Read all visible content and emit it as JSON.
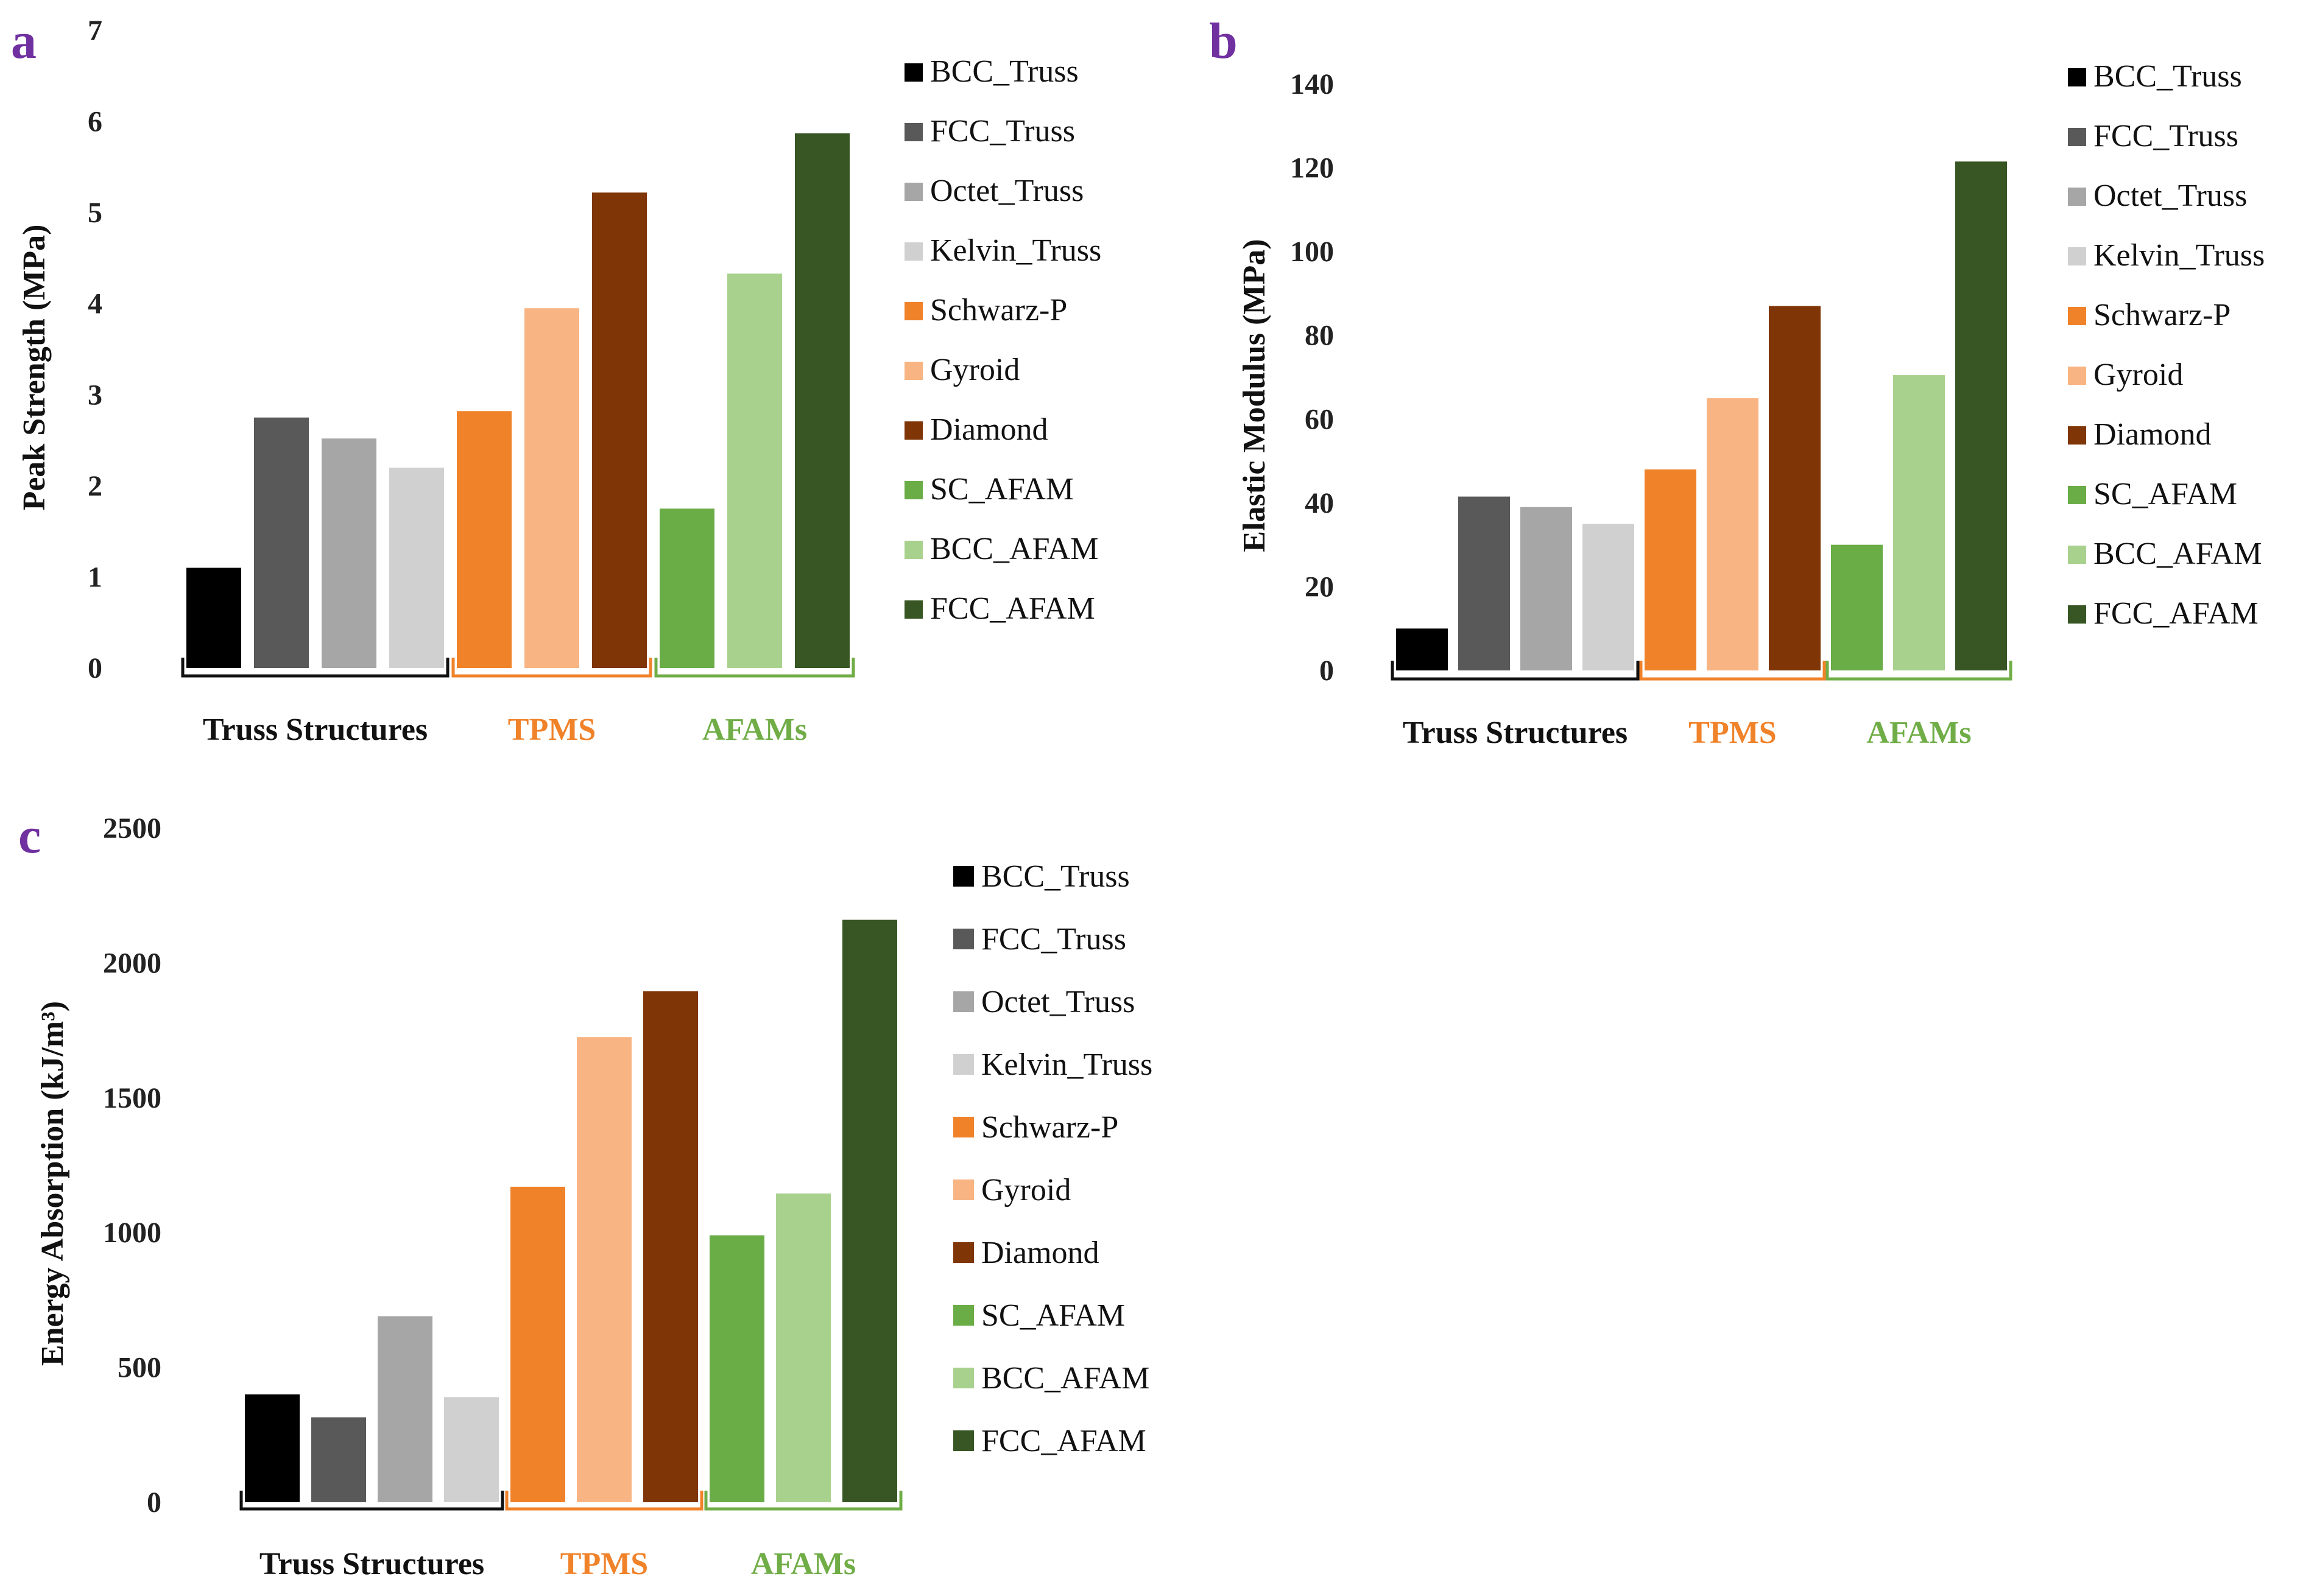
{
  "legend_items": [
    {
      "name": "BCC_Truss",
      "color": "#000000"
    },
    {
      "name": "FCC_Truss",
      "color": "#595959"
    },
    {
      "name": "Octet_Truss",
      "color": "#a6a6a6"
    },
    {
      "name": "Kelvin_Truss",
      "color": "#d0d0d0"
    },
    {
      "name": "Schwarz-P",
      "color": "#f0822a"
    },
    {
      "name": "Gyroid",
      "color": "#f8b482"
    },
    {
      "name": "Diamond",
      "color": "#7f3506"
    },
    {
      "name": "SC_AFAM",
      "color": "#6aac46"
    },
    {
      "name": "BCC_AFAM",
      "color": "#a9d18e"
    },
    {
      "name": "FCC_AFAM",
      "color": "#375623"
    }
  ],
  "groups": [
    {
      "label": "Truss Structures",
      "color": "#111111",
      "range": [
        0,
        3
      ]
    },
    {
      "label": "TPMS",
      "color": "#f0822a",
      "range": [
        4,
        6
      ]
    },
    {
      "label": "AFAMs",
      "color": "#70ad47",
      "range": [
        7,
        9
      ]
    }
  ],
  "chart_data": [
    {
      "panel": "a",
      "type": "bar",
      "categories": [
        "BCC_Truss",
        "FCC_Truss",
        "Octet_Truss",
        "Kelvin_Truss",
        "Schwarz-P",
        "Gyroid",
        "Diamond",
        "SC_AFAM",
        "BCC_AFAM",
        "FCC_AFAM"
      ],
      "values": [
        1.1,
        2.75,
        2.52,
        2.2,
        2.82,
        3.95,
        5.22,
        1.75,
        4.33,
        5.87
      ],
      "ylabel": "Peak Strength (MPa)",
      "ylim": [
        0,
        7
      ],
      "yticks": [
        "0",
        "1",
        "2",
        "3",
        "4",
        "5",
        "6",
        "7"
      ]
    },
    {
      "panel": "b",
      "type": "bar",
      "categories": [
        "BCC_Truss",
        "FCC_Truss",
        "Octet_Truss",
        "Kelvin_Truss",
        "Schwarz-P",
        "Gyroid",
        "Diamond",
        "SC_AFAM",
        "BCC_AFAM",
        "FCC_AFAM"
      ],
      "values": [
        10,
        41.5,
        39,
        35,
        48,
        65,
        87,
        30,
        70.5,
        121.5
      ],
      "ylabel": "Elastic Modulus (MPa)",
      "ylim": [
        0,
        140
      ],
      "yticks": [
        "0",
        "20",
        "40",
        "60",
        "80",
        "100",
        "120",
        "140"
      ]
    },
    {
      "panel": "c",
      "type": "bar",
      "categories": [
        "BCC_Truss",
        "FCC_Truss",
        "Octet_Truss",
        "Kelvin_Truss",
        "Schwarz-P",
        "Gyroid",
        "Diamond",
        "SC_AFAM",
        "BCC_AFAM",
        "FCC_AFAM"
      ],
      "values": [
        400,
        315,
        690,
        390,
        1170,
        1725,
        1895,
        990,
        1145,
        2160
      ],
      "ylabel": "Energy Absorption (kJ/m³)",
      "ylim": [
        0,
        2500
      ],
      "yticks": [
        "0",
        "500",
        "1000",
        "1500",
        "2000",
        "2500"
      ]
    }
  ]
}
